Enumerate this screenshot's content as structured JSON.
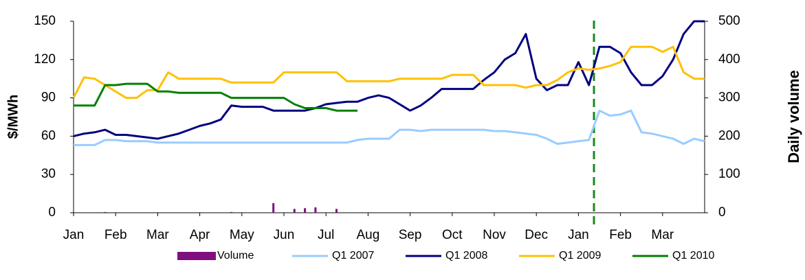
{
  "chart_data": {
    "type": "line",
    "y_label": "$/MWh",
    "y2_label": "Daily volume",
    "categories": [
      "Jan",
      null,
      null,
      null,
      "Feb",
      null,
      null,
      null,
      "Mar",
      null,
      null,
      null,
      "Apr",
      null,
      null,
      null,
      "May",
      null,
      null,
      null,
      "Jun",
      null,
      null,
      null,
      "Jul",
      null,
      null,
      null,
      "Aug",
      null,
      null,
      null,
      "Sep",
      null,
      null,
      null,
      "Oct",
      null,
      null,
      null,
      "Nov",
      null,
      null,
      null,
      "Dec",
      null,
      null,
      null,
      "Jan",
      null,
      null,
      null,
      "Feb",
      null,
      null,
      null,
      "Mar",
      null,
      null,
      null,
      null
    ],
    "series": [
      {
        "name": "Volume",
        "type": "bar",
        "axis": "y2",
        "color": "#7f0f7f",
        "values": [
          0,
          0,
          0,
          2,
          0,
          0,
          0,
          0,
          0,
          0,
          0,
          0,
          0,
          0,
          0,
          2,
          0,
          0,
          0,
          25,
          0,
          10,
          12,
          14,
          0,
          10,
          0,
          0,
          0,
          0,
          0,
          0,
          0,
          0,
          0,
          0,
          0,
          0,
          0,
          0,
          0,
          0,
          0,
          0,
          0,
          0,
          0,
          0,
          0,
          0,
          0,
          0,
          0,
          0,
          0,
          0,
          0,
          0,
          0,
          0,
          0
        ]
      },
      {
        "name": "Q1 2007",
        "color": "#99ccff",
        "values": [
          53,
          53,
          53,
          57,
          57,
          56,
          56,
          56,
          55,
          55,
          55,
          55,
          55,
          55,
          55,
          55,
          55,
          55,
          55,
          55,
          55,
          55,
          55,
          55,
          55,
          55,
          55,
          57,
          58,
          58,
          58,
          65,
          65,
          64,
          65,
          65,
          65,
          65,
          65,
          65,
          64,
          64,
          63,
          62,
          61,
          58,
          54,
          55,
          56,
          57,
          80,
          76,
          77,
          80,
          63,
          62,
          60,
          58,
          54,
          58,
          56
        ]
      },
      {
        "name": "Q1 2008",
        "color": "#000080",
        "values": [
          60,
          62,
          63,
          65,
          61,
          61,
          60,
          59,
          58,
          60,
          62,
          65,
          68,
          70,
          73,
          84,
          83,
          83,
          83,
          80,
          80,
          80,
          80,
          82,
          85,
          86,
          87,
          87,
          90,
          92,
          90,
          85,
          80,
          84,
          90,
          97,
          97,
          97,
          97,
          104,
          110,
          120,
          125,
          140,
          105,
          96,
          100,
          100,
          118,
          100,
          130,
          130,
          125,
          110,
          100,
          100,
          107,
          120,
          140,
          150,
          150
        ]
      },
      {
        "name": "Q1 2009",
        "color": "#ffc000",
        "values": [
          90,
          106,
          105,
          100,
          95,
          90,
          90,
          96,
          96,
          110,
          105,
          105,
          105,
          105,
          105,
          102,
          102,
          102,
          102,
          102,
          110,
          110,
          110,
          110,
          110,
          110,
          103,
          103,
          103,
          103,
          103,
          105,
          105,
          105,
          105,
          105,
          108,
          108,
          108,
          100,
          100,
          100,
          100,
          98,
          100,
          100,
          104,
          110,
          113,
          112,
          113,
          115,
          118,
          130,
          130,
          130,
          126,
          130,
          110,
          105,
          105
        ]
      },
      {
        "name": "Q1 2010",
        "color": "#008000",
        "values": [
          84,
          84,
          84,
          100,
          100,
          101,
          101,
          101,
          95,
          95,
          94,
          94,
          94,
          94,
          94,
          90,
          90,
          90,
          90,
          90,
          90,
          85,
          82,
          82,
          82,
          80,
          80,
          80,
          null,
          null,
          null,
          null,
          null,
          null,
          null,
          null,
          null,
          null,
          null,
          null,
          null,
          null,
          null,
          null,
          null,
          null,
          null,
          null,
          null,
          null,
          null,
          null,
          null,
          null,
          null,
          null,
          null,
          null,
          null,
          null,
          null
        ]
      }
    ],
    "ylim": [
      0,
      150
    ],
    "yticks": [
      0,
      30,
      60,
      90,
      120,
      150
    ],
    "y2lim": [
      0,
      500
    ],
    "y2ticks": [
      0,
      100,
      200,
      300,
      400,
      500
    ],
    "grid": false
  }
}
